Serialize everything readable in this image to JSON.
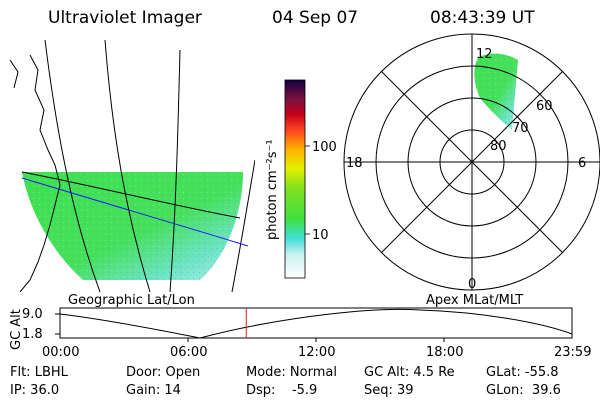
{
  "header": {
    "instrument": "Ultraviolet Imager",
    "date": "04 Sep 07",
    "time": "08:43:39 UT"
  },
  "geo_panel": {
    "label": "Geographic Lat/Lon"
  },
  "colorbar": {
    "unit_label": "photon cm⁻²s⁻¹",
    "ticks": [
      "100",
      "10"
    ]
  },
  "polar_panel": {
    "label": "Apex MLat/MLT",
    "mlt_labels": {
      "top": "12",
      "left": "18",
      "right": "6",
      "bottom": "0"
    },
    "mlat_labels": [
      "60",
      "70",
      "80"
    ]
  },
  "gc_alt_plot": {
    "ylabel": "GC Alt",
    "yticks": [
      "9.0",
      "1.8"
    ],
    "xticks": [
      "00:00",
      "06:00",
      "12:00",
      "18:00",
      "23:59"
    ],
    "current_time_hours": 8.73
  },
  "footer": {
    "flt": "Flt: LBHL",
    "ip": "IP: 36.0",
    "door": "Door: Open",
    "gain": "Gain: 14",
    "mode": "Mode: Normal",
    "dsp": "Dsp:    -5.9",
    "gcalt": "GC Alt: 4.5 Re",
    "seq": "Seq: 39",
    "glat": "GLat: -55.8",
    "glon": "GLon:  39.6"
  },
  "colors": {
    "aurora_green": "#4de34d",
    "aurora_cyan": "#7fe8e8",
    "current_time_marker": "#e02020",
    "blue_line": "#1a1aff"
  }
}
